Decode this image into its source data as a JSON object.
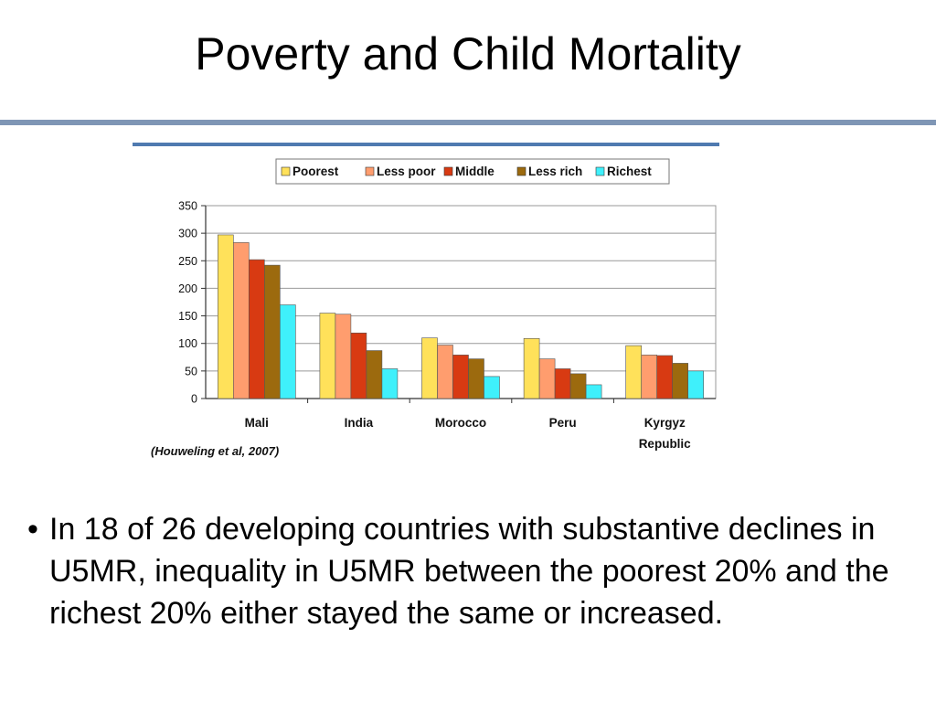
{
  "slide": {
    "title": "Poverty and Child Mortality",
    "bullet_symbol": "•",
    "bullet_text": "In 18 of 26 developing countries with substantive declines in U5MR, inequality in U5MR between the poorest 20% and the richest 20% either stayed the same or increased."
  },
  "colors": {
    "rule": "#7f96b5",
    "chart_top_rule": "#4f7ab0"
  },
  "chart_data": {
    "type": "bar",
    "categories": [
      "Mali",
      "India",
      "Morocco",
      "Peru",
      "Kyrgyz Republic"
    ],
    "category_lines": [
      [
        "Mali"
      ],
      [
        "India"
      ],
      [
        "Morocco"
      ],
      [
        "Peru"
      ],
      [
        "Kyrgyz",
        "Republic"
      ]
    ],
    "series": [
      {
        "name": "Poorest",
        "color": "#ffe15a",
        "values": [
          297,
          155,
          110,
          109,
          96
        ]
      },
      {
        "name": "Less poor",
        "color": "#ff9d6e",
        "values": [
          283,
          153,
          97,
          72,
          79
        ]
      },
      {
        "name": "Middle",
        "color": "#d83a12",
        "values": [
          252,
          119,
          79,
          54,
          78
        ]
      },
      {
        "name": "Less rich",
        "color": "#9c6a0e",
        "values": [
          242,
          87,
          72,
          45,
          64
        ]
      },
      {
        "name": "Richest",
        "color": "#3ff0fb",
        "values": [
          170,
          54,
          40,
          25,
          50
        ]
      }
    ],
    "ylim": [
      0,
      350
    ],
    "yticks": [
      0,
      50,
      100,
      150,
      200,
      250,
      300,
      350
    ],
    "grid": true,
    "legend": "top-center",
    "source": "(Houweling et al, 2007)",
    "title": "",
    "xlabel": "",
    "ylabel": ""
  }
}
